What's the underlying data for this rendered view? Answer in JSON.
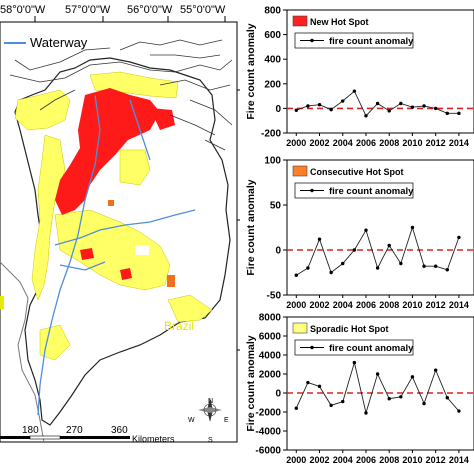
{
  "map": {
    "lon_labels": [
      "58°0'0\"W",
      "57°0'0\"W",
      "56°0'0\"W",
      "55°0'0\"W"
    ],
    "legend_label": "Waterway",
    "country_label": "Brazil",
    "scale_ticks": [
      "180",
      "270",
      "360"
    ],
    "scale_unit": "Kilometers",
    "compass": {
      "n": "N",
      "s": "S",
      "e": "E",
      "w": "W"
    },
    "colors": {
      "new": "#ff0000",
      "consecutive": "#f07020",
      "sporadic": "#ffff66",
      "waterway": "#4f8fd8"
    }
  },
  "chart_data": [
    {
      "type": "line",
      "legend_box": "New Hot Spot",
      "legend_line": "fire count anomaly",
      "ylabel": "Fire count anomaly",
      "xlabel": "",
      "x": [
        2000,
        2001,
        2002,
        2003,
        2004,
        2005,
        2006,
        2007,
        2008,
        2009,
        2010,
        2011,
        2012,
        2013,
        2014
      ],
      "values": [
        -15,
        20,
        30,
        -10,
        60,
        140,
        -60,
        40,
        -20,
        40,
        10,
        20,
        0,
        -40,
        -40
      ],
      "ylim": [
        -200,
        800
      ],
      "yticks": [
        -200,
        0,
        200,
        400,
        600,
        800
      ],
      "xticks": [
        2000,
        2002,
        2004,
        2006,
        2008,
        2010,
        2012,
        2014
      ],
      "box_color": "#ff2020",
      "zero_line": "dashed-red"
    },
    {
      "type": "line",
      "legend_box": "Consecutive Hot Spot",
      "legend_line": "fire count anomaly",
      "ylabel": "Fire count anomaly",
      "xlabel": "",
      "x": [
        2000,
        2001,
        2002,
        2003,
        2004,
        2005,
        2006,
        2007,
        2008,
        2009,
        2010,
        2011,
        2012,
        2013,
        2014
      ],
      "values": [
        -28,
        -20,
        12,
        -25,
        -15,
        0,
        22,
        -20,
        5,
        -15,
        25,
        -18,
        -18,
        -22,
        14
      ],
      "ylim": [
        -50,
        100
      ],
      "yticks": [
        -50,
        0,
        50,
        100
      ],
      "xticks": [
        2000,
        2002,
        2004,
        2006,
        2008,
        2010,
        2012,
        2014
      ],
      "box_color": "#ff7f27",
      "zero_line": "dashed-red"
    },
    {
      "type": "line",
      "legend_box": "Sporadic Hot Spot",
      "legend_line": "fire count anomaly",
      "ylabel": "Fire count anomaly",
      "xlabel": "",
      "x": [
        2000,
        2001,
        2002,
        2003,
        2004,
        2005,
        2006,
        2007,
        2008,
        2009,
        2010,
        2011,
        2012,
        2013,
        2014
      ],
      "values": [
        -1600,
        1100,
        700,
        -1300,
        -900,
        3200,
        -2100,
        2000,
        -600,
        -400,
        1700,
        -1100,
        2400,
        -500,
        -1900
      ],
      "ylim": [
        -6000,
        8000
      ],
      "yticks": [
        -6000,
        -4000,
        -2000,
        0,
        2000,
        4000,
        6000,
        8000
      ],
      "xticks": [
        2000,
        2002,
        2004,
        2006,
        2008,
        2010,
        2012,
        2014
      ],
      "box_color": "#ffff80",
      "zero_line": "dashed-red"
    }
  ]
}
